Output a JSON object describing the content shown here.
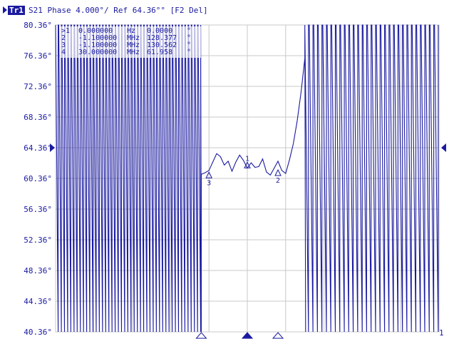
{
  "header": {
    "trace_badge": "Tr1",
    "title": "S21 Phase 4.000°/ Ref 64.36°° [F2 Del]"
  },
  "colors": {
    "trace": "#1a1aa0",
    "grid": "#c8c8c8",
    "text": "#1a1aa0",
    "background": "#ffffff"
  },
  "icons": {
    "reference_left": "ref-level-left-triangle-icon",
    "reference_right": "ref-level-right-triangle-icon",
    "channel_end": "channel-end-number"
  },
  "channel_end_label": "1",
  "marker_table": [
    {
      "id": ">1",
      "stim": "0.000000",
      "unit": "Hz",
      "value": "0.0000",
      "vunit": "°"
    },
    {
      "id": "2",
      "stim": "-1.100000",
      "unit": "MHz",
      "value": "128.377",
      "vunit": "°"
    },
    {
      "id": "3",
      "stim": "-1.100000",
      "unit": "MHz",
      "value": "130.562",
      "vunit": "°"
    },
    {
      "id": "4",
      "stim": "30.000000",
      "unit": "MHz",
      "value": "61.958",
      "vunit": "°"
    }
  ],
  "chart_data": {
    "type": "line",
    "title": "S21 Phase 4.000°/ Ref 64.36°° [F2 Del]",
    "xlabel": "",
    "ylabel": "",
    "y_unit": "°",
    "scale_per_div": 4.0,
    "reference_level": 64.36,
    "ylim": [
      40.36,
      80.36
    ],
    "y_ticks": [
      "80.36°",
      "76.36°",
      "72.36°",
      "68.36°",
      "64.36°",
      "60.36°",
      "56.36°",
      "52.36°",
      "48.36°",
      "44.36°",
      "40.36°"
    ],
    "x_divisions": 10,
    "xlim": [
      0,
      10
    ],
    "grid": true,
    "series": [
      {
        "wrapping_regions": [
          {
            "x_start": 0.0,
            "x_end": 3.8,
            "cycles": 46,
            "y_low": 40.36,
            "y_high": 80.36
          },
          {
            "x_start": 6.5,
            "x_end": 10.0,
            "cycles": 30,
            "y_low": 40.36,
            "y_high": 80.36
          }
        ],
        "flat_region": [
          [
            3.8,
            60.9
          ],
          [
            3.9,
            61.1
          ],
          [
            4.0,
            61.4
          ],
          [
            4.1,
            62.5
          ],
          [
            4.2,
            63.6
          ],
          [
            4.3,
            63.2
          ],
          [
            4.4,
            62.1
          ],
          [
            4.5,
            62.6
          ],
          [
            4.6,
            61.3
          ],
          [
            4.7,
            62.5
          ],
          [
            4.8,
            63.4
          ],
          [
            4.9,
            62.7
          ],
          [
            5.0,
            61.7
          ],
          [
            5.1,
            62.4
          ],
          [
            5.2,
            61.8
          ],
          [
            5.3,
            61.9
          ],
          [
            5.4,
            62.9
          ],
          [
            5.5,
            61.2
          ],
          [
            5.6,
            60.8
          ],
          [
            5.7,
            61.7
          ],
          [
            5.8,
            62.6
          ],
          [
            5.9,
            61.4
          ],
          [
            6.0,
            61.0
          ],
          [
            6.1,
            62.8
          ],
          [
            6.2,
            64.9
          ],
          [
            6.3,
            67.8
          ],
          [
            6.4,
            71.5
          ],
          [
            6.5,
            76.0
          ]
        ]
      }
    ],
    "markers": [
      {
        "label": "1",
        "x": 5.0,
        "y": 62.1
      },
      {
        "label": "2",
        "x": 5.8,
        "y": 61.1
      },
      {
        "label": "3",
        "x": 4.0,
        "y": 60.8
      }
    ],
    "bottom_markers": [
      {
        "x": 3.8,
        "active": false
      },
      {
        "x": 5.0,
        "active": true
      },
      {
        "x": 5.8,
        "active": false
      }
    ]
  }
}
